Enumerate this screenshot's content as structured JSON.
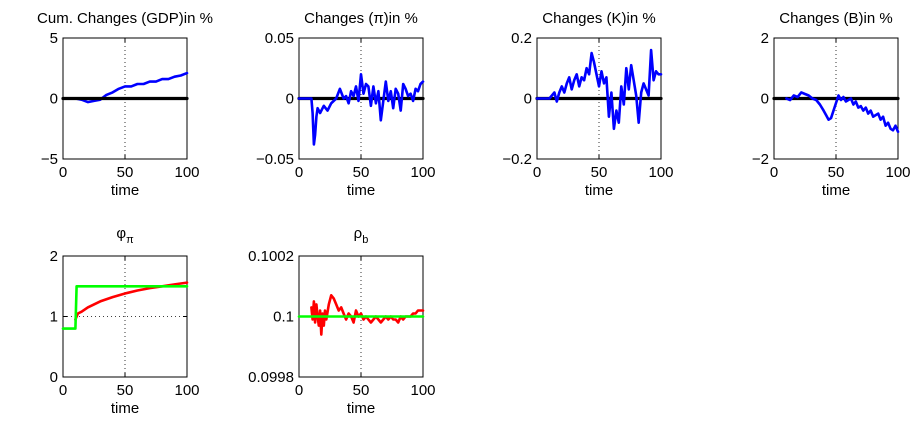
{
  "chart_data": [
    {
      "type": "line",
      "title": "Cum. Changes (GDP)in %",
      "xlabel": "time",
      "ylabel": "",
      "xlim": [
        0,
        100
      ],
      "ylim": [
        -5,
        5
      ],
      "xticks": [
        0,
        50,
        100
      ],
      "xtick_labels": [
        "0",
        "50",
        "100"
      ],
      "yticks": [
        -5,
        0,
        5
      ],
      "ytick_labels": [
        "−5",
        "0",
        "5"
      ],
      "grid": "dotted",
      "series": [
        {
          "color": "#0000ff",
          "x": [
            10,
            15,
            20,
            25,
            30,
            35,
            40,
            45,
            50,
            55,
            60,
            65,
            70,
            75,
            80,
            85,
            90,
            95,
            100
          ],
          "y": [
            0,
            -0.1,
            -0.3,
            -0.2,
            -0.1,
            0.3,
            0.5,
            0.8,
            1.0,
            1.0,
            1.2,
            1.2,
            1.4,
            1.4,
            1.6,
            1.6,
            1.8,
            1.9,
            2.1
          ]
        },
        {
          "color": "#000000",
          "x": [
            0,
            100
          ],
          "y": [
            0,
            0
          ]
        }
      ]
    },
    {
      "type": "line",
      "title": "Changes (π)in %",
      "xlabel": "time",
      "ylabel": "",
      "xlim": [
        0,
        100
      ],
      "ylim": [
        -0.05,
        0.05
      ],
      "xticks": [
        0,
        50,
        100
      ],
      "xtick_labels": [
        "0",
        "50",
        "100"
      ],
      "yticks": [
        -0.05,
        0,
        0.05
      ],
      "ytick_labels": [
        "−0.05",
        "0",
        "0.05"
      ],
      "grid": "dotted",
      "series": [
        {
          "color": "#000000",
          "x": [
            0,
            100
          ],
          "y": [
            0,
            0
          ]
        },
        {
          "color": "#0000ff",
          "x": [
            0,
            10,
            11,
            12,
            13,
            14,
            15,
            17,
            20,
            23,
            26,
            30,
            33,
            36,
            38,
            40,
            42,
            44,
            46,
            48,
            50,
            52,
            54,
            56,
            58,
            60,
            62,
            64,
            66,
            68,
            70,
            72,
            74,
            76,
            78,
            80,
            82,
            84,
            86,
            88,
            90,
            92,
            94,
            96,
            98,
            100
          ],
          "y": [
            0,
            0,
            -0.012,
            -0.038,
            -0.03,
            -0.015,
            -0.008,
            -0.012,
            -0.006,
            -0.01,
            -0.004,
            0,
            0.008,
            0,
            0.002,
            -0.004,
            0.006,
            0.002,
            0.01,
            -0.002,
            0.02,
            0.004,
            0.012,
            0.01,
            -0.006,
            0.01,
            -0.004,
            0.006,
            -0.018,
            -0.002,
            0.014,
            -0.002,
            0.006,
            -0.008,
            0.008,
            0.004,
            -0.01,
            0.012,
            0.008,
            0.002,
            0.004,
            -0.002,
            0.008,
            0.006,
            0.012,
            0.014
          ]
        }
      ]
    },
    {
      "type": "line",
      "title": "Changes (K)in %",
      "xlabel": "time",
      "ylabel": "",
      "xlim": [
        0,
        100
      ],
      "ylim": [
        -0.2,
        0.2
      ],
      "xticks": [
        0,
        50,
        100
      ],
      "xtick_labels": [
        "0",
        "50",
        "100"
      ],
      "yticks": [
        -0.2,
        0,
        0.2
      ],
      "ytick_labels": [
        "−0.2",
        "0",
        "0.2"
      ],
      "grid": "dotted",
      "series": [
        {
          "color": "#000000",
          "x": [
            0,
            100
          ],
          "y": [
            0,
            0
          ]
        },
        {
          "color": "#0000ff",
          "x": [
            0,
            10,
            12,
            14,
            16,
            18,
            20,
            22,
            24,
            26,
            28,
            30,
            32,
            34,
            36,
            38,
            40,
            42,
            44,
            46,
            48,
            50,
            52,
            54,
            56,
            58,
            60,
            62,
            64,
            66,
            68,
            70,
            72,
            74,
            76,
            78,
            80,
            82,
            84,
            86,
            88,
            90,
            92,
            94,
            96,
            98,
            100
          ],
          "y": [
            0,
            0,
            0.01,
            0.02,
            -0.01,
            0.02,
            0.04,
            0.02,
            0.05,
            0.07,
            0.03,
            0.06,
            0.08,
            0.04,
            0.07,
            0.06,
            0.1,
            0.08,
            0.15,
            0.12,
            0.08,
            0.04,
            0.09,
            0.05,
            0.07,
            -0.06,
            0.02,
            -0.1,
            -0.04,
            -0.08,
            0.04,
            -0.02,
            0.1,
            0.03,
            0.11,
            0.06,
            0.01,
            -0.08,
            0.02,
            0.05,
            0.03,
            0.01,
            0.16,
            0.06,
            0.09,
            0.08,
            0.08
          ]
        }
      ]
    },
    {
      "type": "line",
      "title": "Changes (B)in %",
      "xlabel": "time",
      "ylabel": "",
      "xlim": [
        0,
        100
      ],
      "ylim": [
        -2,
        2
      ],
      "xticks": [
        0,
        50,
        100
      ],
      "xtick_labels": [
        "0",
        "50",
        "100"
      ],
      "yticks": [
        -2,
        0,
        2
      ],
      "ytick_labels": [
        "−2",
        "0",
        "2"
      ],
      "grid": "dotted",
      "series": [
        {
          "color": "#000000",
          "x": [
            0,
            100
          ],
          "y": [
            0,
            0
          ]
        },
        {
          "color": "#0000ff",
          "x": [
            10,
            13,
            16,
            19,
            22,
            25,
            28,
            31,
            34,
            37,
            40,
            42,
            44,
            46,
            48,
            50,
            52,
            54,
            56,
            58,
            60,
            62,
            64,
            66,
            68,
            70,
            72,
            74,
            76,
            78,
            80,
            82,
            84,
            86,
            88,
            90,
            92,
            94,
            96,
            98,
            100
          ],
          "y": [
            0,
            -0.05,
            0.1,
            0.05,
            0.2,
            0.15,
            0.1,
            0.0,
            -0.05,
            -0.2,
            -0.4,
            -0.55,
            -0.7,
            -0.65,
            -0.4,
            -0.15,
            0.1,
            -0.05,
            0.05,
            -0.1,
            -0.05,
            0.0,
            -0.2,
            -0.1,
            -0.3,
            -0.25,
            -0.4,
            -0.3,
            -0.5,
            -0.4,
            -0.6,
            -0.55,
            -0.5,
            -0.7,
            -0.6,
            -0.9,
            -0.8,
            -1.0,
            -1.05,
            -0.9,
            -1.1
          ]
        }
      ]
    },
    {
      "type": "line",
      "title": "φπ",
      "title_main": "φ",
      "title_sub": "π",
      "xlabel": "time",
      "ylabel": "",
      "xlim": [
        0,
        100
      ],
      "ylim": [
        0,
        2
      ],
      "xticks": [
        0,
        50,
        100
      ],
      "xtick_labels": [
        "0",
        "50",
        "100"
      ],
      "yticks": [
        0,
        1,
        2
      ],
      "ytick_labels": [
        "0",
        "1",
        "2"
      ],
      "grid": "dotted",
      "series": [
        {
          "color": "#ff0000",
          "x": [
            10,
            12,
            15,
            20,
            25,
            30,
            40,
            50,
            60,
            70,
            80,
            90,
            100
          ],
          "y": [
            0.95,
            1.05,
            1.08,
            1.15,
            1.2,
            1.25,
            1.32,
            1.38,
            1.43,
            1.47,
            1.5,
            1.53,
            1.56
          ]
        },
        {
          "color": "#00ff00",
          "x": [
            0,
            10,
            11,
            100
          ],
          "y": [
            0.8,
            0.8,
            1.5,
            1.5
          ]
        }
      ]
    },
    {
      "type": "line",
      "title": "ρb",
      "title_main": "ρ",
      "title_sub": "b",
      "xlabel": "time",
      "ylabel": "",
      "xlim": [
        0,
        100
      ],
      "ylim": [
        0.0998,
        0.1002
      ],
      "xticks": [
        0,
        50,
        100
      ],
      "xtick_labels": [
        "0",
        "50",
        "100"
      ],
      "yticks": [
        0.0998,
        0.1,
        0.1002
      ],
      "ytick_labels": [
        "0.0998",
        "0.1",
        "0.1002"
      ],
      "grid": "dotted",
      "series": [
        {
          "color": "#ff0000",
          "x": [
            10,
            11,
            12,
            13,
            14,
            15,
            16,
            17,
            18,
            19,
            20,
            21,
            22,
            24,
            26,
            28,
            30,
            32,
            34,
            36,
            38,
            40,
            42,
            44,
            46,
            48,
            50,
            52,
            54,
            56,
            58,
            60,
            62,
            64,
            66,
            68,
            70,
            72,
            74,
            76,
            78,
            80,
            82,
            84,
            86,
            88,
            90,
            92,
            94,
            96,
            98,
            100
          ],
          "y": [
            0.10003,
            0.09999,
            0.10005,
            0.09998,
            0.10004,
            0.1,
            0.09997,
            0.10002,
            0.09994,
            0.10001,
            0.09997,
            0.10002,
            0.09999,
            0.10004,
            0.10007,
            0.10006,
            0.10004,
            0.10002,
            0.10003,
            0.10001,
            0.09999,
            0.10001,
            0.1,
            0.09998,
            0.10002,
            0.1,
            0.10001,
            0.09999,
            0.1,
            0.09999,
            0.09998,
            0.09999,
            0.1,
            0.09999,
            0.09998,
            0.09999,
            0.1,
            0.09999,
            0.1,
            0.09999,
            0.09999,
            0.09998,
            0.1,
            0.09999,
            0.1,
            0.1,
            0.1,
            0.10001,
            0.10001,
            0.10002,
            0.10002,
            0.10002
          ]
        },
        {
          "color": "#00ff00",
          "x": [
            0,
            100
          ],
          "y": [
            0.1,
            0.1
          ]
        }
      ]
    }
  ]
}
